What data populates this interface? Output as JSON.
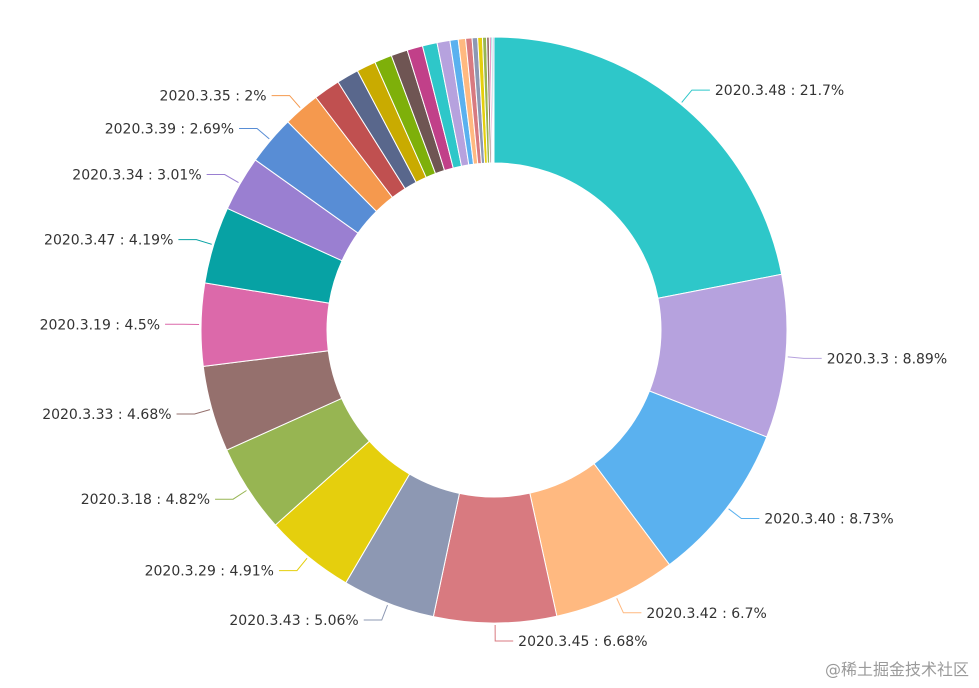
{
  "chart_data": {
    "type": "pie",
    "variant": "donut",
    "labeled_slices": [
      {
        "name": "2020.3.48",
        "value": 21.7,
        "label_text": "2020.3.48 : 21.7%",
        "color": "#2ec7c9"
      },
      {
        "name": "2020.3.3",
        "value": 8.89,
        "label_text": "2020.3.3 : 8.89%",
        "color": "#b6a2de"
      },
      {
        "name": "2020.3.40",
        "value": 8.73,
        "label_text": "2020.3.40 : 8.73%",
        "color": "#5ab1ef"
      },
      {
        "name": "2020.3.42",
        "value": 6.7,
        "label_text": "2020.3.42 : 6.7%",
        "color": "#ffb980"
      },
      {
        "name": "2020.3.45",
        "value": 6.68,
        "label_text": "2020.3.45 : 6.68%",
        "color": "#d87a80"
      },
      {
        "name": "2020.3.43",
        "value": 5.06,
        "label_text": "2020.3.43 : 5.06%",
        "color": "#8d98b3"
      },
      {
        "name": "2020.3.29",
        "value": 4.91,
        "label_text": "2020.3.29 : 4.91%",
        "color": "#e5cf0d"
      },
      {
        "name": "2020.3.18",
        "value": 4.82,
        "label_text": "2020.3.18 : 4.82%",
        "color": "#97b552"
      },
      {
        "name": "2020.3.33",
        "value": 4.68,
        "label_text": "2020.3.33 : 4.68%",
        "color": "#95706d"
      },
      {
        "name": "2020.3.19",
        "value": 4.5,
        "label_text": "2020.3.19 : 4.5%",
        "color": "#dc69aa"
      },
      {
        "name": "2020.3.47",
        "value": 4.19,
        "label_text": "2020.3.47 : 4.19%",
        "color": "#07a2a4"
      },
      {
        "name": "2020.3.34",
        "value": 3.01,
        "label_text": "2020.3.34 : 3.01%",
        "color": "#9a7fd1"
      },
      {
        "name": "2020.3.39",
        "value": 2.69,
        "label_text": "2020.3.39 : 2.69%",
        "color": "#588dd5"
      },
      {
        "name": "2020.3.35",
        "value": 2.0,
        "label_text": "2020.3.35 : 2%",
        "color": "#f5994e"
      }
    ],
    "unlabeled_slices": [
      {
        "value": 1.45,
        "color": "#c05050"
      },
      {
        "value": 1.2,
        "color": "#59678c"
      },
      {
        "value": 1.05,
        "color": "#c9ab00"
      },
      {
        "value": 0.95,
        "color": "#7eb00a"
      },
      {
        "value": 0.9,
        "color": "#6f5553"
      },
      {
        "value": 0.85,
        "color": "#c14089"
      },
      {
        "value": 0.8,
        "color": "#2ec7c9"
      },
      {
        "value": 0.7,
        "color": "#b6a2de"
      },
      {
        "value": 0.45,
        "color": "#5ab1ef"
      },
      {
        "value": 0.4,
        "color": "#ffb980"
      },
      {
        "value": 0.35,
        "color": "#d87a80"
      },
      {
        "value": 0.3,
        "color": "#8d98b3"
      },
      {
        "value": 0.26,
        "color": "#e5cf0d"
      },
      {
        "value": 0.22,
        "color": "#97b552"
      },
      {
        "value": 0.15,
        "color": "#95706d"
      },
      {
        "value": 0.1,
        "color": "#dc69aa"
      },
      {
        "value": 0.08,
        "color": "#07a2a4"
      },
      {
        "value": 0.07,
        "color": "#9a7fd1"
      }
    ],
    "start_angle_deg": 90,
    "direction": "clockwise",
    "inner_radius_fraction": 0.57
  },
  "watermark": "@稀土掘金技术社区"
}
